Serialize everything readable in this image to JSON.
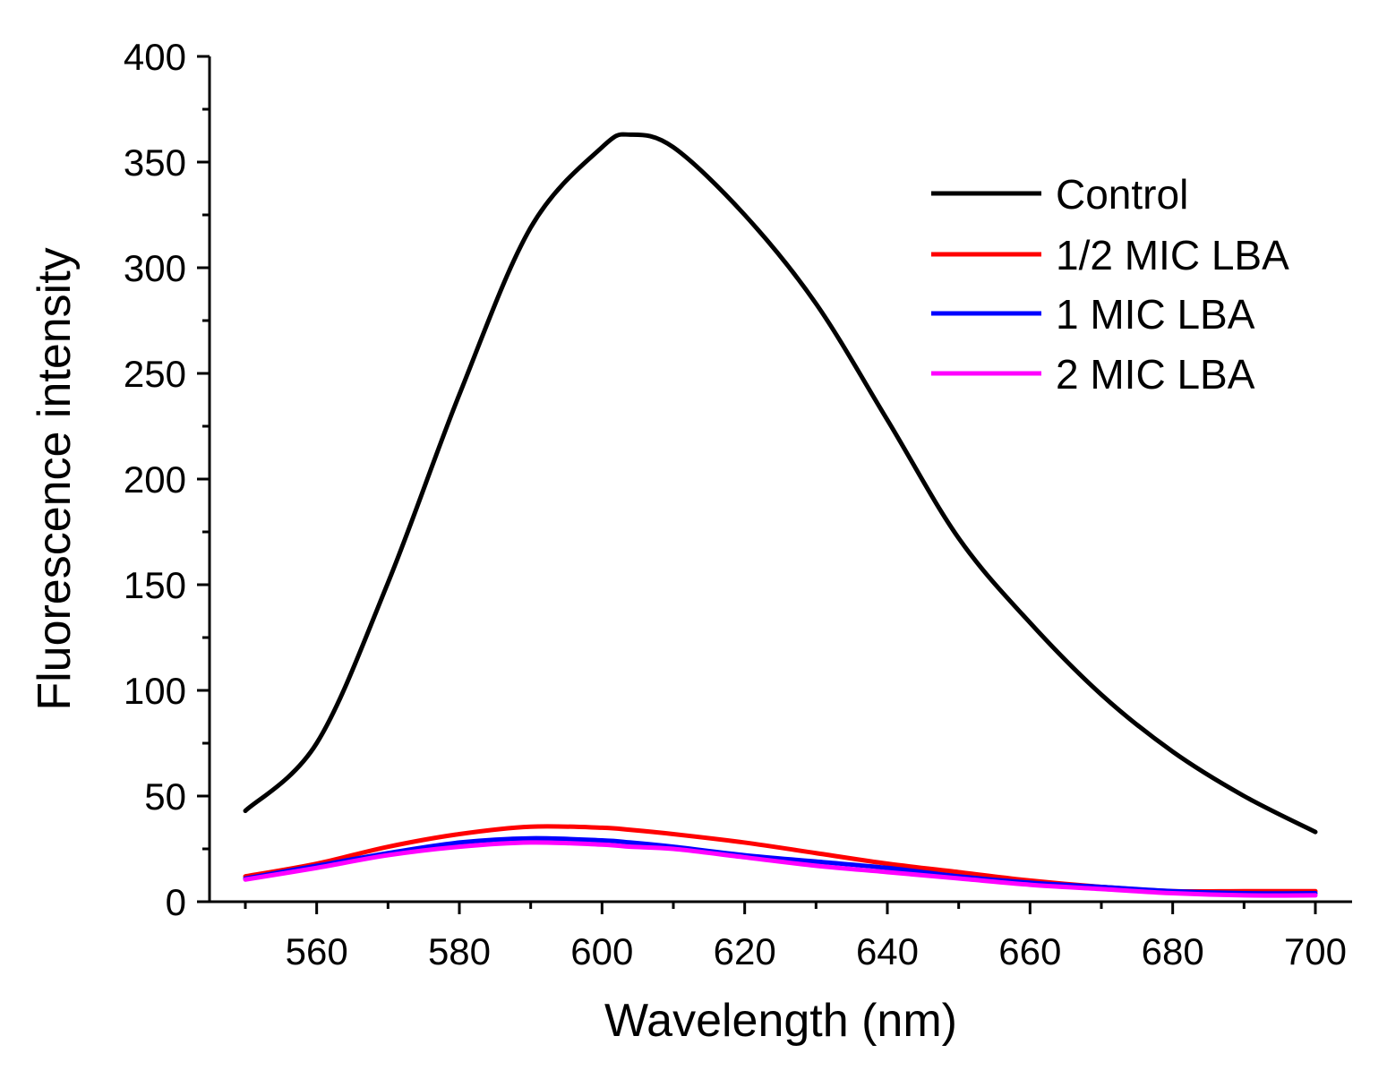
{
  "chart_data": {
    "type": "line",
    "title": "",
    "xlabel": "Wavelength (nm)",
    "ylabel": "Fluorescence intensity",
    "xlim": [
      545,
      705
    ],
    "ylim": [
      0,
      400
    ],
    "xticks": [
      560,
      580,
      600,
      620,
      640,
      660,
      680,
      700
    ],
    "yticks": [
      0,
      50,
      100,
      150,
      200,
      250,
      300,
      350,
      400
    ],
    "grid": false,
    "legend_position": "top-right",
    "x": [
      550,
      560,
      570,
      580,
      590,
      600,
      604,
      610,
      620,
      630,
      640,
      650,
      660,
      670,
      680,
      690,
      700
    ],
    "series": [
      {
        "name": "Control",
        "color": "#000000",
        "values": [
          43,
          75,
          151,
          240,
          319,
          357,
          363,
          357,
          325,
          283,
          228,
          172,
          132,
          98,
          71,
          50,
          33
        ]
      },
      {
        "name": "1/2 MIC LBA",
        "color": "#ff0000",
        "values": [
          12,
          18,
          26,
          32,
          35.5,
          35,
          34,
          32,
          28,
          23,
          18,
          14,
          10,
          7,
          5,
          5,
          5
        ]
      },
      {
        "name": "1 MIC LBA",
        "color": "#0000ff",
        "values": [
          11,
          17,
          23,
          28,
          30,
          29,
          28,
          26,
          22,
          19,
          16,
          12,
          9,
          7,
          5,
          4,
          4
        ]
      },
      {
        "name": "2 MIC LBA",
        "color": "#ff00ff",
        "values": [
          10.5,
          16,
          22,
          26,
          28,
          27,
          26,
          25,
          21,
          17,
          14,
          11,
          8,
          6,
          4,
          3,
          3
        ]
      }
    ]
  }
}
